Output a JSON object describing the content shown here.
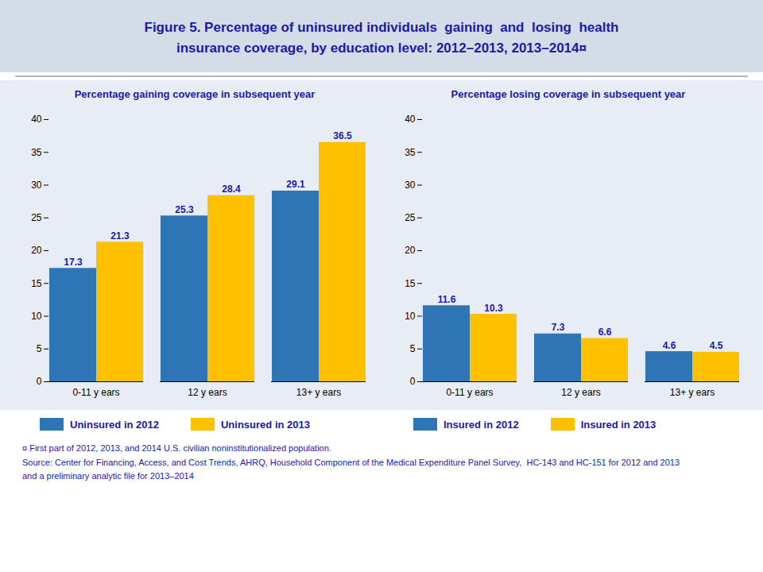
{
  "title": "Figure 5. Percentage of uninsured individuals  gaining  and  losing  health\ninsurance coverage, by education level: 2012–2013, 2013–2014¤",
  "annotations": [
    "¤ First part of 2012, 2013, and 2014 U.S. civilian noninstitutionalized population.",
    "Source: Center for Financing, Access, and Cost Trends, AHRQ, Household Component of the Medical Expenditure Panel Survey,  HC-143 and HC-151 for 2012 and 2013",
    "and a preliminary analytic file for 2013–2014"
  ],
  "chart_data": [
    {
      "type": "bar",
      "title": "Percentage gaining coverage in subsequent year",
      "categories": [
        "0-11 y ears",
        "12 y ears",
        "13+ y ears"
      ],
      "series": [
        {
          "name": "Uninsured in 2012",
          "color": "#2e75b6",
          "values": [
            17.3,
            25.3,
            29.1
          ]
        },
        {
          "name": "Uninsured in 2013",
          "color": "#ffc000",
          "values": [
            21.3,
            28.4,
            36.5
          ]
        }
      ],
      "ylim": [
        0,
        40
      ],
      "yticks": [
        0,
        5,
        10,
        15,
        20,
        25,
        30,
        35,
        40
      ],
      "data_labels": true,
      "grid": false,
      "legend": "bottom"
    },
    {
      "type": "bar",
      "title": "Percentage losing coverage in subsequent year",
      "categories": [
        "0-11 y ears",
        "12 y ears",
        "13+ y ears"
      ],
      "series": [
        {
          "name": "Insured in 2012",
          "color": "#2e75b6",
          "values": [
            11.6,
            7.3,
            4.6
          ]
        },
        {
          "name": "Insured in 2013",
          "color": "#ffc000",
          "values": [
            10.3,
            6.6,
            4.5
          ]
        }
      ],
      "ylim": [
        0,
        40
      ],
      "yticks": [
        0,
        5,
        10,
        15,
        20,
        25,
        30,
        35,
        40
      ],
      "data_labels": true,
      "grid": false,
      "legend": "bottom"
    }
  ]
}
